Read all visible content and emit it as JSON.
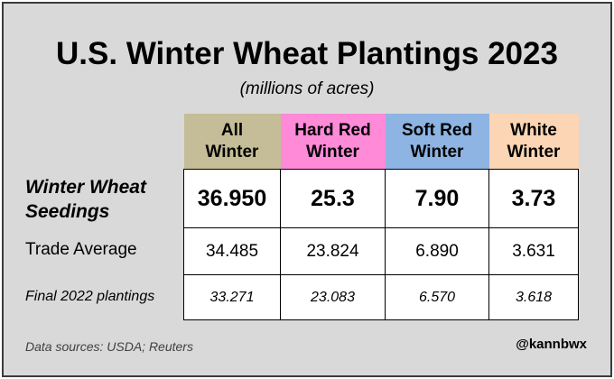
{
  "chart_data": {
    "type": "table",
    "title": "U.S. Winter Wheat Plantings 2023",
    "subtitle": "(millions of acres)",
    "columns": [
      {
        "line1": "All",
        "line2": "Winter",
        "color": "#c4bd97"
      },
      {
        "line1": "Hard Red",
        "line2": "Winter",
        "color": "#ff8ad8"
      },
      {
        "line1": "Soft Red",
        "line2": "Winter",
        "color": "#8db4e2"
      },
      {
        "line1": "White",
        "line2": "Winter",
        "color": "#fcd5b4"
      }
    ],
    "rows": [
      {
        "label_line1": "Winter Wheat",
        "label_line2": "Seedings",
        "values": [
          "36.950",
          "25.3",
          "7.90",
          "3.73"
        ]
      },
      {
        "label": "Trade Average",
        "values": [
          "34.485",
          "23.824",
          "6.890",
          "3.631"
        ]
      },
      {
        "label": "Final 2022 plantings",
        "values": [
          "33.271",
          "23.083",
          "6.570",
          "3.618"
        ]
      }
    ],
    "source": "Data sources: USDA; Reuters",
    "credit": "@kannbwx"
  }
}
